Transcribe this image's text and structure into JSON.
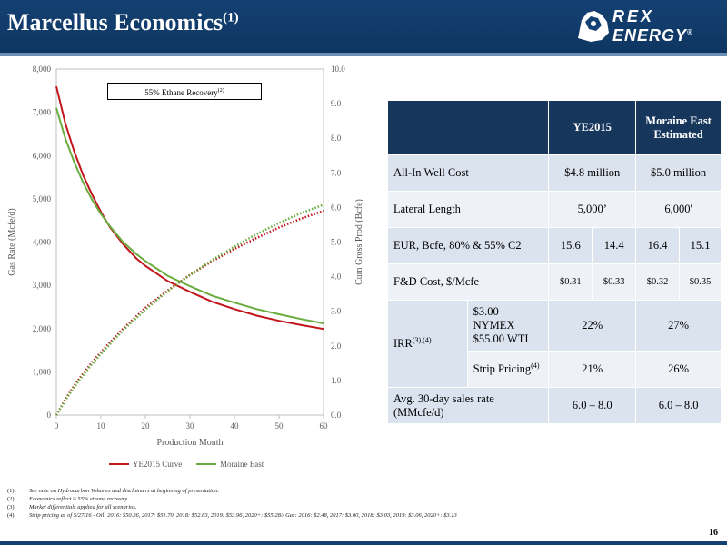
{
  "header": {
    "title": "Marcellus Economics",
    "title_sup": "(1)",
    "logo_line1": "REX",
    "logo_line2": "ENERGY",
    "logo_mark": "®"
  },
  "chart_data": {
    "type": "line",
    "annotation": "55% Ethane Recovery",
    "annotation_sup": "(2)",
    "xlabel": "Production Month",
    "ylabel_left": "Gas Rate (Mcfe/d)",
    "ylabel_right": "Cum Gross Prod (Bcfe)",
    "xlim": [
      0,
      60
    ],
    "ylim_left": [
      0,
      8000
    ],
    "ylim_right": [
      0,
      10
    ],
    "x_ticks": [
      "0",
      "10",
      "20",
      "30",
      "40",
      "50",
      "60"
    ],
    "left_ticks": [
      "0",
      "1,000",
      "2,000",
      "3,000",
      "4,000",
      "5,000",
      "6,000",
      "7,000",
      "8,000"
    ],
    "right_ticks": [
      "0.0",
      "1.0",
      "2.0",
      "3.0",
      "4.0",
      "5.0",
      "6.0",
      "7.0",
      "8.0",
      "9.0",
      "10.0"
    ],
    "grid": false,
    "legend_position": "bottom",
    "series": [
      {
        "name": "YE2015 Curve",
        "color": "#c0161c",
        "axis": "left",
        "style": "solid",
        "x": [
          0,
          2,
          4,
          6,
          8,
          10,
          12,
          15,
          18,
          20,
          25,
          30,
          35,
          40,
          45,
          50,
          55,
          60
        ],
        "y": [
          7600,
          6750,
          6100,
          5550,
          5100,
          4700,
          4350,
          3950,
          3620,
          3450,
          3100,
          2850,
          2620,
          2450,
          2300,
          2180,
          2080,
          1990
        ]
      },
      {
        "name": "Moraine East",
        "color": "#6aac3e",
        "axis": "left",
        "style": "solid",
        "x": [
          0,
          2,
          4,
          6,
          8,
          10,
          12,
          15,
          18,
          20,
          25,
          30,
          35,
          40,
          45,
          50,
          55,
          60
        ],
        "y": [
          7100,
          6400,
          5850,
          5380,
          4980,
          4650,
          4370,
          4000,
          3720,
          3560,
          3220,
          2980,
          2760,
          2600,
          2450,
          2330,
          2220,
          2120
        ]
      },
      {
        "name": "YE2015 Cum",
        "color": "#c0161c",
        "axis": "right",
        "style": "dotted",
        "x": [
          0,
          2,
          4,
          6,
          8,
          10,
          15,
          20,
          25,
          30,
          35,
          40,
          45,
          50,
          55,
          60
        ],
        "y": [
          0,
          0.45,
          0.85,
          1.2,
          1.52,
          1.82,
          2.5,
          3.1,
          3.6,
          4.05,
          4.45,
          4.8,
          5.12,
          5.42,
          5.68,
          5.9
        ]
      },
      {
        "name": "Moraine East Cum",
        "color": "#6aac3e",
        "axis": "right",
        "style": "dotted",
        "x": [
          0,
          2,
          4,
          6,
          8,
          10,
          15,
          20,
          25,
          30,
          35,
          40,
          45,
          50,
          55,
          60
        ],
        "y": [
          0,
          0.42,
          0.8,
          1.15,
          1.47,
          1.77,
          2.45,
          3.05,
          3.58,
          4.05,
          4.48,
          4.87,
          5.23,
          5.55,
          5.84,
          6.08
        ]
      }
    ],
    "legend": [
      {
        "name": "YE2015 Curve",
        "color": "#c0161c"
      },
      {
        "name": "Moraine East",
        "color": "#6aac3e"
      }
    ]
  },
  "table": {
    "headers": [
      "YE2015",
      "Moraine East Estimated"
    ],
    "rows": {
      "well_cost": {
        "label": "All-In Well Cost",
        "v1": "$4.8 million",
        "v2": "$5.0 million"
      },
      "lateral": {
        "label": "Lateral Length",
        "v1": "5,000’",
        "v2": "6,000'"
      },
      "eur": {
        "label": "EUR, Bcfe, 80% & 55% C2",
        "a": "15.6",
        "b": "14.4",
        "c": "16.4",
        "d": "15.1"
      },
      "fd": {
        "label": "F&D Cost, $/Mcfe",
        "a": "$0.31",
        "b": "$0.33",
        "c": "$0.32",
        "d": "$0.35"
      },
      "irr": {
        "label": "IRR",
        "label_sup": "(3),(4)",
        "sub1_label": "$3.00 NYMEX $55.00 WTI",
        "sub1_v1": "22%",
        "sub1_v2": "27%",
        "sub2_label": "Strip Pricing",
        "sub2_sup": "(4)",
        "sub2_v1": "21%",
        "sub2_v2": "26%"
      },
      "sales": {
        "label": "Avg. 30-day sales rate (MMcfe/d)",
        "v1": "6.0 – 8.0",
        "v2": "6.0 – 8.0"
      }
    }
  },
  "footnotes": [
    {
      "num": "(1)",
      "text": "See note on Hydrocarbon Volumes and disclaimers at beginning of presentation."
    },
    {
      "num": "(2)",
      "text": "Economics reflect ≈ 55% ethane recovery."
    },
    {
      "num": "(3)",
      "text": "Market differentials applied for all scenarios."
    },
    {
      "num": "(4)",
      "text": "Strip pricing as of 5/27/16 - Oil: 2016: $50.26, 2017: $51.70, 2018: $52.63, 2019: $53.96, 2020+: $55.28// Gas: 2016: $2.48, 2017: $3.00, 2018: $3.03, 2019: $3.06, 2020+: $3.13"
    }
  ],
  "page_number": "16"
}
